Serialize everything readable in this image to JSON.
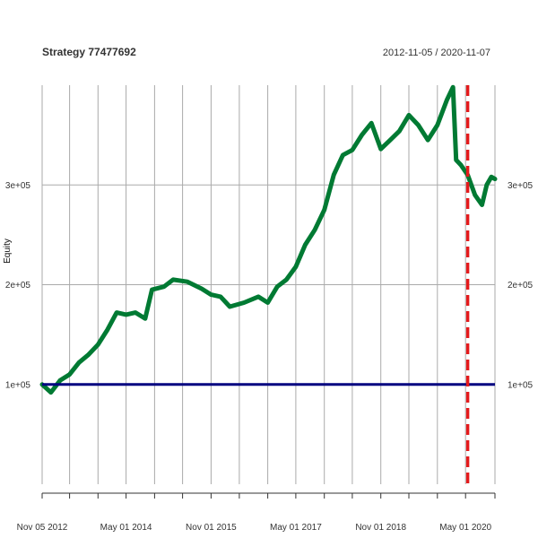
{
  "chart_data": {
    "type": "line",
    "title": "Strategy 77477692",
    "date_range": "2012-11-05 / 2020-11-07",
    "ylabel": "Equity",
    "xlim": [
      "2012-11-05",
      "2020-11-07"
    ],
    "ylim": [
      0,
      400000
    ],
    "x_ticks": [
      {
        "date": "2012-11-05",
        "label": "Nov 05 2012"
      },
      {
        "date": "2014-05-01",
        "label": "May 01 2014"
      },
      {
        "date": "2015-11-01",
        "label": "Nov 01 2015"
      },
      {
        "date": "2017-05-01",
        "label": "May 01 2017"
      },
      {
        "date": "2018-11-01",
        "label": "Nov 01 2018"
      },
      {
        "date": "2020-05-01",
        "label": "May 01 2020"
      }
    ],
    "vertical_grid_dates": [
      "2012-11-05",
      "2013-05-01",
      "2013-11-01",
      "2014-05-01",
      "2014-11-01",
      "2015-05-01",
      "2015-11-01",
      "2016-05-01",
      "2016-11-01",
      "2017-05-01",
      "2017-11-01",
      "2018-05-01",
      "2018-11-01",
      "2019-05-01",
      "2019-11-01",
      "2020-05-01",
      "2020-11-07"
    ],
    "y_ticks": [
      {
        "value": 100000,
        "label": "1e+05"
      },
      {
        "value": 200000,
        "label": "2e+05"
      },
      {
        "value": 300000,
        "label": "3e+05"
      }
    ],
    "baseline": {
      "value": 100000,
      "color": "#000080"
    },
    "marker_line": {
      "date": "2020-05-15",
      "color": "#e41a1c",
      "style": "dashed"
    },
    "series": [
      {
        "color": "#007a33",
        "points": [
          [
            "2012-11-05",
            100000
          ],
          [
            "2013-01-01",
            92000
          ],
          [
            "2013-03-01",
            104000
          ],
          [
            "2013-05-01",
            110000
          ],
          [
            "2013-07-01",
            122000
          ],
          [
            "2013-09-01",
            130000
          ],
          [
            "2013-11-01",
            140000
          ],
          [
            "2014-01-01",
            155000
          ],
          [
            "2014-03-01",
            172000
          ],
          [
            "2014-05-01",
            170000
          ],
          [
            "2014-07-01",
            172000
          ],
          [
            "2014-09-01",
            166000
          ],
          [
            "2014-10-15",
            195000
          ],
          [
            "2015-01-01",
            198000
          ],
          [
            "2015-03-01",
            205000
          ],
          [
            "2015-06-01",
            203000
          ],
          [
            "2015-09-01",
            196000
          ],
          [
            "2015-11-01",
            190000
          ],
          [
            "2016-01-01",
            188000
          ],
          [
            "2016-03-01",
            178000
          ],
          [
            "2016-06-01",
            182000
          ],
          [
            "2016-09-01",
            188000
          ],
          [
            "2016-11-01",
            182000
          ],
          [
            "2017-01-01",
            198000
          ],
          [
            "2017-03-01",
            205000
          ],
          [
            "2017-05-01",
            218000
          ],
          [
            "2017-07-01",
            240000
          ],
          [
            "2017-09-01",
            255000
          ],
          [
            "2017-11-01",
            275000
          ],
          [
            "2018-01-01",
            310000
          ],
          [
            "2018-03-01",
            330000
          ],
          [
            "2018-05-01",
            335000
          ],
          [
            "2018-07-01",
            350000
          ],
          [
            "2018-09-01",
            362000
          ],
          [
            "2018-11-01",
            336000
          ],
          [
            "2019-01-01",
            345000
          ],
          [
            "2019-03-01",
            354000
          ],
          [
            "2019-05-01",
            370000
          ],
          [
            "2019-07-01",
            360000
          ],
          [
            "2019-09-01",
            345000
          ],
          [
            "2019-11-01",
            360000
          ],
          [
            "2020-01-01",
            385000
          ],
          [
            "2020-02-10",
            398000
          ],
          [
            "2020-03-01",
            325000
          ],
          [
            "2020-04-01",
            320000
          ],
          [
            "2020-05-15",
            310000
          ],
          [
            "2020-07-01",
            290000
          ],
          [
            "2020-08-15",
            280000
          ],
          [
            "2020-09-15",
            300000
          ],
          [
            "2020-10-15",
            308000
          ],
          [
            "2020-11-07",
            306000
          ]
        ]
      }
    ]
  }
}
